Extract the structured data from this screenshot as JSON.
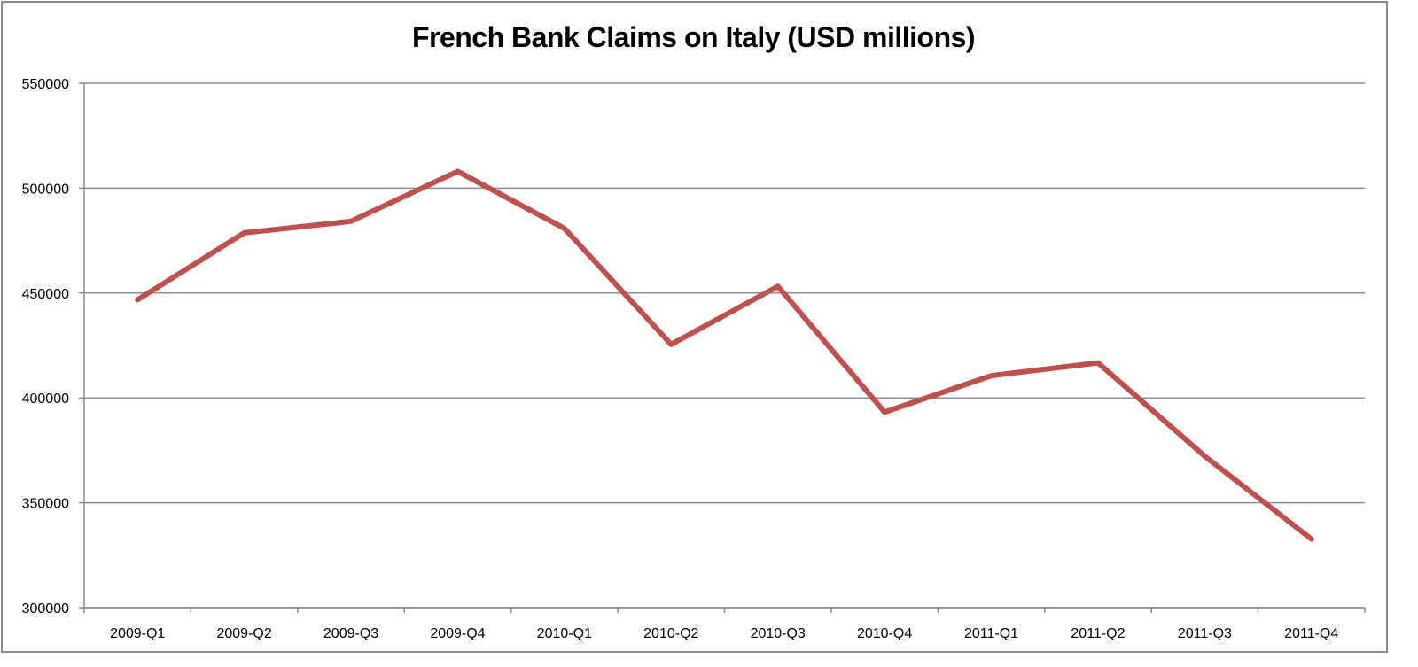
{
  "chart_data": {
    "type": "line",
    "title": "French Bank Claims on Italy (USD millions)",
    "xlabel": "",
    "ylabel": "",
    "categories": [
      "2009-Q1",
      "2009-Q2",
      "2009-Q3",
      "2009-Q4",
      "2010-Q1",
      "2010-Q2",
      "2010-Q3",
      "2010-Q4",
      "2011-Q1",
      "2011-Q2",
      "2011-Q3",
      "2011-Q4"
    ],
    "series": [
      {
        "name": "French Bank Claims on Italy",
        "color": "#C0504D",
        "values": [
          446800,
          478700,
          484200,
          508000,
          480800,
          425500,
          453200,
          393200,
          410600,
          416700,
          372200,
          332700
        ]
      }
    ],
    "ylim": [
      300000,
      550000
    ],
    "yticks": [
      300000,
      350000,
      400000,
      450000,
      500000,
      550000
    ],
    "ytick_labels": [
      "300000",
      "350000",
      "400000",
      "450000",
      "500000",
      "550000"
    ],
    "grid": true,
    "legend": "none"
  },
  "colors": {
    "line": "#C0504D",
    "grid": "#8c8c8c",
    "border": "#8c8c8c"
  }
}
